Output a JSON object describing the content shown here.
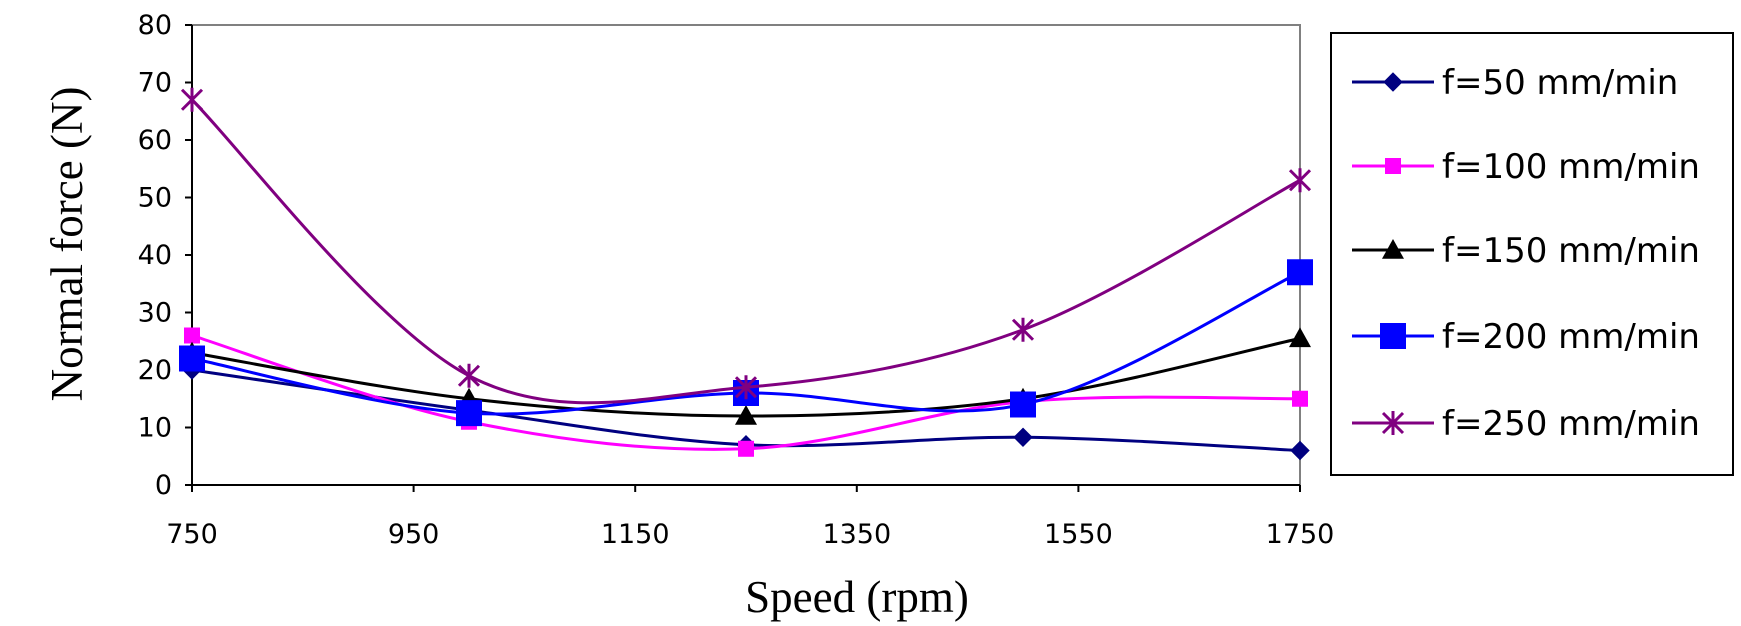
{
  "chart_data": {
    "type": "line",
    "title": "",
    "xlabel": "Speed (rpm)",
    "ylabel": "Normal force (N)",
    "x": [
      750,
      1000,
      1250,
      1500,
      1750
    ],
    "xlim": [
      750,
      1750
    ],
    "ylim": [
      0,
      80
    ],
    "xticks": [
      750,
      950,
      1150,
      1350,
      1550,
      1750
    ],
    "yticks": [
      0,
      10,
      20,
      30,
      40,
      50,
      60,
      70,
      80
    ],
    "grid": false,
    "legend_position": "right",
    "series": [
      {
        "name": "f=50 mm/min",
        "values": [
          20,
          13,
          7,
          8.3,
          6
        ],
        "color": "#000080",
        "marker": "diamond"
      },
      {
        "name": "f=100 mm/min",
        "values": [
          26,
          11,
          6.3,
          14.5,
          15
        ],
        "color": "#ff00ff",
        "marker": "square"
      },
      {
        "name": "f=150 mm/min",
        "values": [
          23,
          15,
          12,
          15,
          25.5
        ],
        "color": "#000000",
        "marker": "triangle"
      },
      {
        "name": "f=200 mm/min",
        "values": [
          22,
          12.5,
          16,
          14,
          37
        ],
        "color": "#0000ff",
        "marker": "square-large"
      },
      {
        "name": "f=250 mm/min",
        "values": [
          67,
          19,
          17,
          27,
          53
        ],
        "color": "#800080",
        "marker": "star"
      }
    ]
  }
}
